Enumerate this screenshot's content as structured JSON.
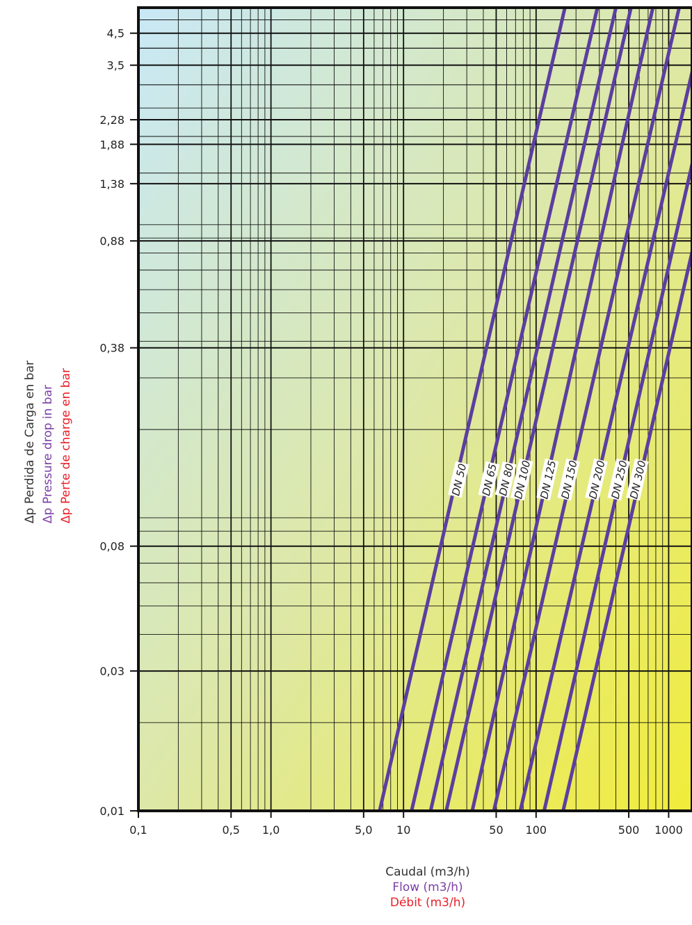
{
  "chart_data": {
    "type": "line",
    "xscale": "log",
    "yscale": "log",
    "xlim": [
      0.1,
      1500
    ],
    "ylim": [
      0.01,
      5.5
    ],
    "x_ticks": [
      {
        "value": 0.1,
        "label": "0,1"
      },
      {
        "value": 0.5,
        "label": "0,5"
      },
      {
        "value": 1.0,
        "label": "1,0"
      },
      {
        "value": 5.0,
        "label": "5,0"
      },
      {
        "value": 10,
        "label": "10"
      },
      {
        "value": 50,
        "label": "50"
      },
      {
        "value": 100,
        "label": "100"
      },
      {
        "value": 500,
        "label": "500"
      },
      {
        "value": 1000,
        "label": "1000"
      }
    ],
    "y_ticks": [
      {
        "value": 0.01,
        "label": "0,01"
      },
      {
        "value": 0.03,
        "label": "0,03"
      },
      {
        "value": 0.08,
        "label": "0,08"
      },
      {
        "value": 0.38,
        "label": "0,38"
      },
      {
        "value": 0.88,
        "label": "0,88"
      },
      {
        "value": 1.38,
        "label": "1,38"
      },
      {
        "value": 1.88,
        "label": "1,88"
      },
      {
        "value": 2.28,
        "label": "2,28"
      },
      {
        "value": 3.5,
        "label": "3,5"
      },
      {
        "value": 4.5,
        "label": "4,5"
      }
    ],
    "grid": true,
    "series": [
      {
        "name": "DN 50",
        "points": [
          [
            6.6,
            0.01
          ],
          [
            165,
            5.5
          ]
        ],
        "label_at": [
          26,
          0.135
        ]
      },
      {
        "name": "DN 65",
        "points": [
          [
            11.5,
            0.01
          ],
          [
            290,
            5.5
          ]
        ],
        "label_at": [
          44,
          0.135
        ]
      },
      {
        "name": "DN 80",
        "points": [
          [
            16.0,
            0.01
          ],
          [
            400,
            5.5
          ]
        ],
        "label_at": [
          59,
          0.135
        ]
      },
      {
        "name": "DN 100",
        "points": [
          [
            21.0,
            0.01
          ],
          [
            520,
            5.5
          ]
        ],
        "label_at": [
          78,
          0.135
        ]
      },
      {
        "name": "DN 125",
        "points": [
          [
            33,
            0.01
          ],
          [
            760,
            5.5
          ]
        ],
        "label_at": [
          122,
          0.135
        ]
      },
      {
        "name": "DN 150",
        "points": [
          [
            48,
            0.01
          ],
          [
            1200,
            5.5
          ]
        ],
        "label_at": [
          176,
          0.135
        ]
      },
      {
        "name": "DN 200",
        "points": [
          [
            76,
            0.01
          ],
          [
            1950,
            5.5
          ]
        ],
        "label_at": [
          285,
          0.135
        ]
      },
      {
        "name": "DN 250",
        "points": [
          [
            115,
            0.01
          ],
          [
            2800,
            5.5
          ]
        ],
        "label_at": [
          420,
          0.135
        ]
      },
      {
        "name": "DN 300",
        "points": [
          [
            160,
            0.01
          ],
          [
            4000,
            5.5
          ]
        ],
        "label_at": [
          580,
          0.135
        ]
      }
    ],
    "series_color": "#5b3ea0",
    "ylabel": [
      {
        "symbol": "Δp",
        "text": "Perdida de Carga en bar",
        "color": "#333333"
      },
      {
        "symbol": "Δp",
        "text": "Pressure drop in bar",
        "color": "#7b3fa6"
      },
      {
        "symbol": "Δp",
        "text": "Perte de charge en bar",
        "color": "#e8202a"
      }
    ],
    "xlabel": [
      {
        "text": "Caudal (m3/h)",
        "color": "#333333"
      },
      {
        "text": "Flow (m3/h)",
        "color": "#7b3fa6"
      },
      {
        "text": "Débit (m3/h)",
        "color": "#e8202a"
      }
    ]
  }
}
